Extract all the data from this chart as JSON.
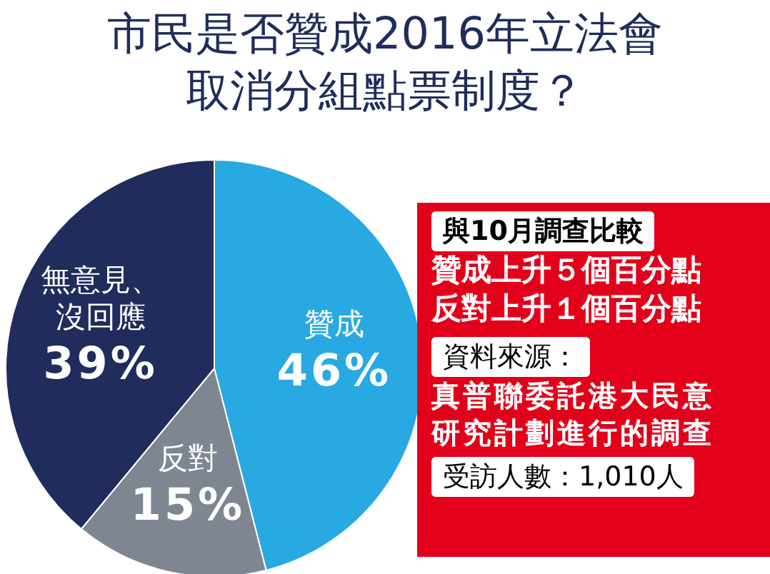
{
  "chart_data": {
    "type": "pie",
    "title": "市民是否贊成2016年立法會取消分組點票制度？",
    "categories": [
      "贊成",
      "反對",
      "無意見、沒回應"
    ],
    "values": [
      46,
      15,
      39
    ],
    "value_labels": [
      "46%",
      "15%",
      "39%"
    ],
    "colors": [
      "#29a9e1",
      "#7e8791",
      "#1f2c5c"
    ],
    "legend": false,
    "annotations": [
      "與10月調查比較",
      "贊成上升５個百分點",
      "反對上升１個百分點",
      "資料來源：",
      "真普聯委託港大民意研究計劃進行的調查",
      "受訪人數：1,010人"
    ]
  }
}
